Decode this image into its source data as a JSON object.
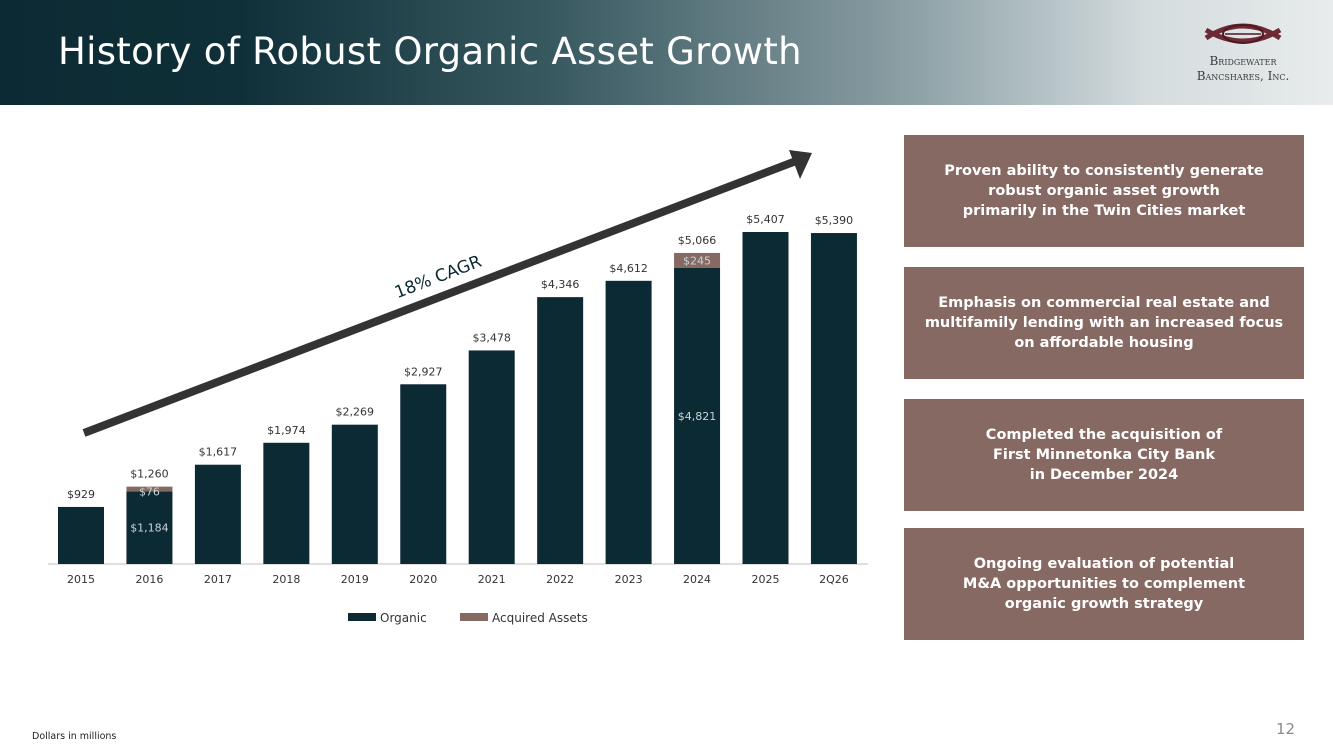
{
  "slide": {
    "title": "History of Robust Organic Asset Growth",
    "logo_line1": "Bridgewater",
    "logo_line2": "Bancshares, Inc.",
    "footnote": "Dollars in millions",
    "page_number": "12"
  },
  "panels": [
    {
      "text": "Proven ability to consistently generate\nrobust organic asset growth\nprimarily in the Twin Cities market"
    },
    {
      "text": "Emphasis on commercial real estate and\nmultifamily lending with an increased focus\non affordable housing"
    },
    {
      "text": "Completed the acquisition of\nFirst Minnetonka City Bank\nin December 2024"
    },
    {
      "text": "Ongoing evaluation of potential\nM&A opportunities to complement\norganic growth strategy"
    }
  ],
  "colors": {
    "organic": "#0c2a33",
    "acquired": "#876963",
    "arrow": "#333333",
    "panel": "#876963"
  },
  "chart_data": {
    "type": "bar",
    "stacked": true,
    "categories": [
      "2015",
      "2016",
      "2017",
      "2018",
      "2019",
      "2020",
      "2021",
      "2022",
      "2023",
      "2024",
      "2025",
      "2Q26"
    ],
    "series": [
      {
        "name": "Organic",
        "values": [
          929,
          1184,
          1617,
          1974,
          2269,
          2927,
          3478,
          4346,
          4612,
          4821,
          5407,
          5390
        ]
      },
      {
        "name": "Acquired Assets",
        "values": [
          0,
          76,
          0,
          0,
          0,
          0,
          0,
          0,
          0,
          245,
          0,
          0
        ]
      }
    ],
    "total_labels": [
      "$929",
      "$1,260",
      "$1,617",
      "$1,974",
      "$2,269",
      "$2,927",
      "$3,478",
      "$4,346",
      "$4,612",
      "$5,066",
      "$5,407",
      "$5,390"
    ],
    "segment_labels": [
      {
        "category": "2016",
        "series": "Organic",
        "text": "$1,184"
      },
      {
        "category": "2016",
        "series": "Acquired Assets",
        "text": "$76"
      },
      {
        "category": "2024",
        "series": "Organic",
        "text": "$4,821"
      },
      {
        "category": "2024",
        "series": "Acquired Assets",
        "text": "$245"
      }
    ],
    "annotation": "18% CAGR",
    "legend_position": "bottom",
    "grid": false,
    "ylim": [
      0,
      5407
    ]
  }
}
